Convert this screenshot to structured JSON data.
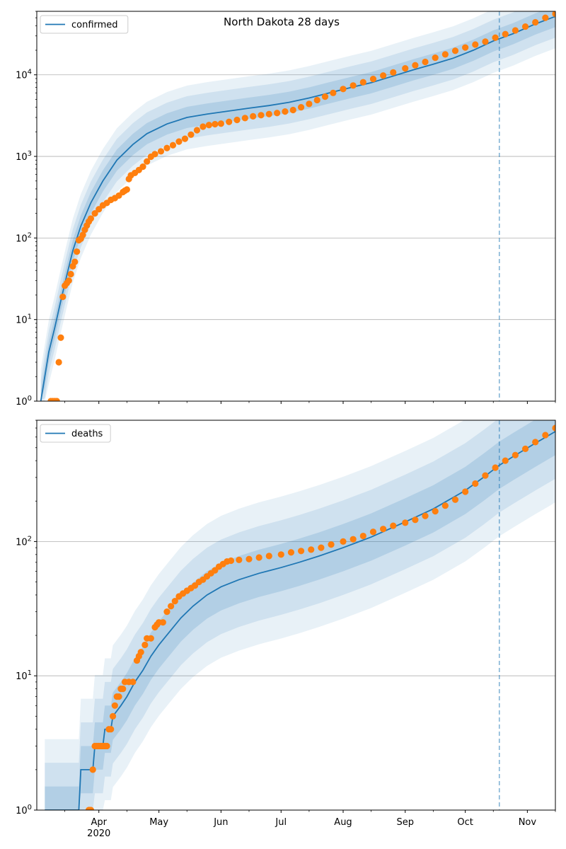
{
  "figure": {
    "title": "North Dakota 28 days"
  },
  "colors": {
    "model": "#1f77b4",
    "observed": "#ff7f0e",
    "band": "#1f77b4",
    "grid": "#b0b0b0",
    "forecast_line": "#1f77b4"
  },
  "chart_data": [
    {
      "type": "line",
      "name": "confirmed",
      "yscale": "log",
      "ylim": [
        1,
        60000
      ],
      "xlim": [
        "2020-03-01",
        "2020-11-15"
      ],
      "grid": "y",
      "legend_position": "top-left",
      "x_ticks": [
        {
          "label": "Apr",
          "date": "2020-04-01"
        },
        {
          "label": "May",
          "date": "2020-05-01"
        },
        {
          "label": "Jun",
          "date": "2020-06-01"
        },
        {
          "label": "Jul",
          "date": "2020-07-01"
        },
        {
          "label": "Aug",
          "date": "2020-08-01"
        },
        {
          "label": "Sep",
          "date": "2020-09-01"
        },
        {
          "label": "Oct",
          "date": "2020-10-01"
        },
        {
          "label": "Nov",
          "date": "2020-11-01"
        }
      ],
      "y_ticks": [
        {
          "value": 1,
          "label": "10^0"
        },
        {
          "value": 10,
          "label": "10^1"
        },
        {
          "value": 100,
          "label": "10^2"
        },
        {
          "value": 1000,
          "label": "10^3"
        },
        {
          "value": 10000,
          "label": "10^4"
        }
      ],
      "forecast_start": "2020-10-18",
      "model": [
        [
          "2020-03-03",
          1
        ],
        [
          "2020-03-05",
          2
        ],
        [
          "2020-03-07",
          4
        ],
        [
          "2020-03-10",
          8
        ],
        [
          "2020-03-13",
          17
        ],
        [
          "2020-03-16",
          35
        ],
        [
          "2020-03-19",
          70
        ],
        [
          "2020-03-23",
          140
        ],
        [
          "2020-03-28",
          270
        ],
        [
          "2020-04-03",
          500
        ],
        [
          "2020-04-10",
          900
        ],
        [
          "2020-04-18",
          1400
        ],
        [
          "2020-04-25",
          1900
        ],
        [
          "2020-05-05",
          2500
        ],
        [
          "2020-05-15",
          3000
        ],
        [
          "2020-05-25",
          3300
        ],
        [
          "2020-06-05",
          3600
        ],
        [
          "2020-06-15",
          3900
        ],
        [
          "2020-06-25",
          4200
        ],
        [
          "2020-07-05",
          4600
        ],
        [
          "2020-07-15",
          5200
        ],
        [
          "2020-07-25",
          6000
        ],
        [
          "2020-08-05",
          7000
        ],
        [
          "2020-08-15",
          8000
        ],
        [
          "2020-08-25",
          9500
        ],
        [
          "2020-09-05",
          11500
        ],
        [
          "2020-09-15",
          13500
        ],
        [
          "2020-09-25",
          16000
        ],
        [
          "2020-10-05",
          20000
        ],
        [
          "2020-10-15",
          26000
        ],
        [
          "2020-10-25",
          32000
        ],
        [
          "2020-11-05",
          42000
        ],
        [
          "2020-11-15",
          52000
        ]
      ],
      "band_factor": 1.35,
      "observed": [
        [
          "2020-03-08",
          1
        ],
        [
          "2020-03-09",
          1
        ],
        [
          "2020-03-10",
          1
        ],
        [
          "2020-03-11",
          1
        ],
        [
          "2020-03-12",
          3
        ],
        [
          "2020-03-13",
          6
        ],
        [
          "2020-03-14",
          19
        ],
        [
          "2020-03-15",
          26
        ],
        [
          "2020-03-16",
          28
        ],
        [
          "2020-03-17",
          30
        ],
        [
          "2020-03-18",
          36
        ],
        [
          "2020-03-19",
          45
        ],
        [
          "2020-03-20",
          51
        ],
        [
          "2020-03-21",
          68
        ],
        [
          "2020-03-22",
          94
        ],
        [
          "2020-03-23",
          98
        ],
        [
          "2020-03-24",
          109
        ],
        [
          "2020-03-25",
          126
        ],
        [
          "2020-03-26",
          142
        ],
        [
          "2020-03-27",
          159
        ],
        [
          "2020-03-28",
          173
        ],
        [
          "2020-03-30",
          200
        ],
        [
          "2020-04-01",
          225
        ],
        [
          "2020-04-03",
          251
        ],
        [
          "2020-04-05",
          269
        ],
        [
          "2020-04-07",
          293
        ],
        [
          "2020-04-09",
          308
        ],
        [
          "2020-04-11",
          331
        ],
        [
          "2020-04-13",
          365
        ],
        [
          "2020-04-14",
          380
        ],
        [
          "2020-04-15",
          393
        ],
        [
          "2020-04-16",
          528
        ],
        [
          "2020-04-17",
          585
        ],
        [
          "2020-04-19",
          627
        ],
        [
          "2020-04-21",
          681
        ],
        [
          "2020-04-23",
          748
        ],
        [
          "2020-04-25",
          867
        ],
        [
          "2020-04-27",
          991
        ],
        [
          "2020-04-29",
          1067
        ],
        [
          "2020-05-02",
          1153
        ],
        [
          "2020-05-05",
          1266
        ],
        [
          "2020-05-08",
          1371
        ],
        [
          "2020-05-11",
          1518
        ],
        [
          "2020-05-14",
          1645
        ],
        [
          "2020-05-17",
          1848
        ],
        [
          "2020-05-20",
          2095
        ],
        [
          "2020-05-23",
          2317
        ],
        [
          "2020-05-26",
          2422
        ],
        [
          "2020-05-29",
          2484
        ],
        [
          "2020-06-01",
          2520
        ],
        [
          "2020-06-05",
          2650
        ],
        [
          "2020-06-09",
          2800
        ],
        [
          "2020-06-13",
          2950
        ],
        [
          "2020-06-17",
          3100
        ],
        [
          "2020-06-21",
          3200
        ],
        [
          "2020-06-25",
          3300
        ],
        [
          "2020-06-29",
          3400
        ],
        [
          "2020-07-03",
          3550
        ],
        [
          "2020-07-07",
          3700
        ],
        [
          "2020-07-11",
          4000
        ],
        [
          "2020-07-15",
          4400
        ],
        [
          "2020-07-19",
          4900
        ],
        [
          "2020-07-23",
          5400
        ],
        [
          "2020-07-27",
          6000
        ],
        [
          "2020-08-01",
          6700
        ],
        [
          "2020-08-06",
          7400
        ],
        [
          "2020-08-11",
          8100
        ],
        [
          "2020-08-16",
          8900
        ],
        [
          "2020-08-21",
          9800
        ],
        [
          "2020-08-26",
          10700
        ],
        [
          "2020-09-01",
          12000
        ],
        [
          "2020-09-06",
          13100
        ],
        [
          "2020-09-11",
          14400
        ],
        [
          "2020-09-16",
          16200
        ],
        [
          "2020-09-21",
          17800
        ],
        [
          "2020-09-26",
          19700
        ],
        [
          "2020-10-01",
          21600
        ],
        [
          "2020-10-06",
          23500
        ],
        [
          "2020-10-11",
          25500
        ],
        [
          "2020-10-16",
          28500
        ],
        [
          "2020-10-21",
          31500
        ],
        [
          "2020-10-26",
          35000
        ],
        [
          "2020-10-31",
          39000
        ],
        [
          "2020-11-05",
          44000
        ],
        [
          "2020-11-10",
          50000
        ],
        [
          "2020-11-15",
          56000
        ]
      ]
    },
    {
      "type": "line",
      "name": "deaths",
      "yscale": "log",
      "ylim": [
        1,
        800
      ],
      "xlim": [
        "2020-03-01",
        "2020-11-15"
      ],
      "grid": "y",
      "legend_position": "top-left",
      "x_ticks": [
        {
          "label": "Apr",
          "sublabel": "2020",
          "date": "2020-04-01"
        },
        {
          "label": "May",
          "date": "2020-05-01"
        },
        {
          "label": "Jun",
          "date": "2020-06-01"
        },
        {
          "label": "Jul",
          "date": "2020-07-01"
        },
        {
          "label": "Aug",
          "date": "2020-08-01"
        },
        {
          "label": "Sep",
          "date": "2020-09-01"
        },
        {
          "label": "Oct",
          "date": "2020-10-01"
        },
        {
          "label": "Nov",
          "date": "2020-11-01"
        }
      ],
      "y_ticks": [
        {
          "value": 1,
          "label": "10^0"
        },
        {
          "value": 10,
          "label": "10^1"
        },
        {
          "value": 100,
          "label": "10^2"
        }
      ],
      "forecast_start": "2020-10-18",
      "model": [
        [
          "2020-03-05",
          1
        ],
        [
          "2020-03-22",
          1
        ],
        [
          "2020-03-23",
          2
        ],
        [
          "2020-03-29",
          2
        ],
        [
          "2020-03-30",
          3
        ],
        [
          "2020-04-03",
          3
        ],
        [
          "2020-04-04",
          4
        ],
        [
          "2020-04-07",
          4
        ],
        [
          "2020-04-08",
          5
        ],
        [
          "2020-04-12",
          6
        ],
        [
          "2020-04-15",
          7
        ],
        [
          "2020-04-19",
          9
        ],
        [
          "2020-04-23",
          11
        ],
        [
          "2020-04-27",
          14
        ],
        [
          "2020-05-01",
          17
        ],
        [
          "2020-05-06",
          21
        ],
        [
          "2020-05-12",
          27
        ],
        [
          "2020-05-18",
          33
        ],
        [
          "2020-05-25",
          40
        ],
        [
          "2020-06-01",
          46
        ],
        [
          "2020-06-10",
          52
        ],
        [
          "2020-06-20",
          58
        ],
        [
          "2020-07-01",
          64
        ],
        [
          "2020-07-10",
          70
        ],
        [
          "2020-07-20",
          78
        ],
        [
          "2020-08-01",
          90
        ],
        [
          "2020-08-15",
          108
        ],
        [
          "2020-09-01",
          140
        ],
        [
          "2020-09-15",
          175
        ],
        [
          "2020-10-01",
          240
        ],
        [
          "2020-10-10",
          300
        ],
        [
          "2020-10-18",
          370
        ],
        [
          "2020-10-25",
          430
        ],
        [
          "2020-11-05",
          540
        ],
        [
          "2020-11-15",
          660
        ]
      ],
      "band_factor": 1.5,
      "observed": [
        [
          "2020-03-27",
          1
        ],
        [
          "2020-03-28",
          1
        ],
        [
          "2020-03-29",
          2
        ],
        [
          "2020-03-30",
          3
        ],
        [
          "2020-03-31",
          3
        ],
        [
          "2020-04-01",
          3
        ],
        [
          "2020-04-02",
          3
        ],
        [
          "2020-04-03",
          3
        ],
        [
          "2020-04-04",
          3
        ],
        [
          "2020-04-05",
          3
        ],
        [
          "2020-04-06",
          4
        ],
        [
          "2020-04-07",
          4
        ],
        [
          "2020-04-08",
          5
        ],
        [
          "2020-04-09",
          6
        ],
        [
          "2020-04-10",
          7
        ],
        [
          "2020-04-11",
          7
        ],
        [
          "2020-04-12",
          8
        ],
        [
          "2020-04-13",
          8
        ],
        [
          "2020-04-14",
          9
        ],
        [
          "2020-04-16",
          9
        ],
        [
          "2020-04-18",
          9
        ],
        [
          "2020-04-20",
          13
        ],
        [
          "2020-04-21",
          14
        ],
        [
          "2020-04-22",
          15
        ],
        [
          "2020-04-24",
          17
        ],
        [
          "2020-04-25",
          19
        ],
        [
          "2020-04-27",
          19
        ],
        [
          "2020-04-29",
          23
        ],
        [
          "2020-04-30",
          24
        ],
        [
          "2020-05-01",
          25
        ],
        [
          "2020-05-03",
          25
        ],
        [
          "2020-05-05",
          30
        ],
        [
          "2020-05-07",
          33
        ],
        [
          "2020-05-09",
          36
        ],
        [
          "2020-05-11",
          39
        ],
        [
          "2020-05-13",
          41
        ],
        [
          "2020-05-15",
          43
        ],
        [
          "2020-05-17",
          45
        ],
        [
          "2020-05-19",
          47
        ],
        [
          "2020-05-21",
          50
        ],
        [
          "2020-05-23",
          52
        ],
        [
          "2020-05-25",
          55
        ],
        [
          "2020-05-27",
          58
        ],
        [
          "2020-05-29",
          61
        ],
        [
          "2020-05-31",
          65
        ],
        [
          "2020-06-02",
          68
        ],
        [
          "2020-06-04",
          71
        ],
        [
          "2020-06-06",
          72
        ],
        [
          "2020-06-10",
          73
        ],
        [
          "2020-06-15",
          74
        ],
        [
          "2020-06-20",
          76
        ],
        [
          "2020-06-25",
          78
        ],
        [
          "2020-07-01",
          80
        ],
        [
          "2020-07-06",
          83
        ],
        [
          "2020-07-11",
          85
        ],
        [
          "2020-07-16",
          87
        ],
        [
          "2020-07-21",
          90
        ],
        [
          "2020-07-26",
          95
        ],
        [
          "2020-08-01",
          100
        ],
        [
          "2020-08-06",
          104
        ],
        [
          "2020-08-11",
          110
        ],
        [
          "2020-08-16",
          118
        ],
        [
          "2020-08-21",
          124
        ],
        [
          "2020-08-26",
          131
        ],
        [
          "2020-09-01",
          138
        ],
        [
          "2020-09-06",
          145
        ],
        [
          "2020-09-11",
          155
        ],
        [
          "2020-09-16",
          168
        ],
        [
          "2020-09-21",
          185
        ],
        [
          "2020-09-26",
          205
        ],
        [
          "2020-10-01",
          235
        ],
        [
          "2020-10-06",
          270
        ],
        [
          "2020-10-11",
          310
        ],
        [
          "2020-10-16",
          355
        ],
        [
          "2020-10-21",
          400
        ],
        [
          "2020-10-26",
          440
        ],
        [
          "2020-10-31",
          490
        ],
        [
          "2020-11-05",
          550
        ],
        [
          "2020-11-10",
          620
        ],
        [
          "2020-11-15",
          700
        ]
      ]
    }
  ]
}
